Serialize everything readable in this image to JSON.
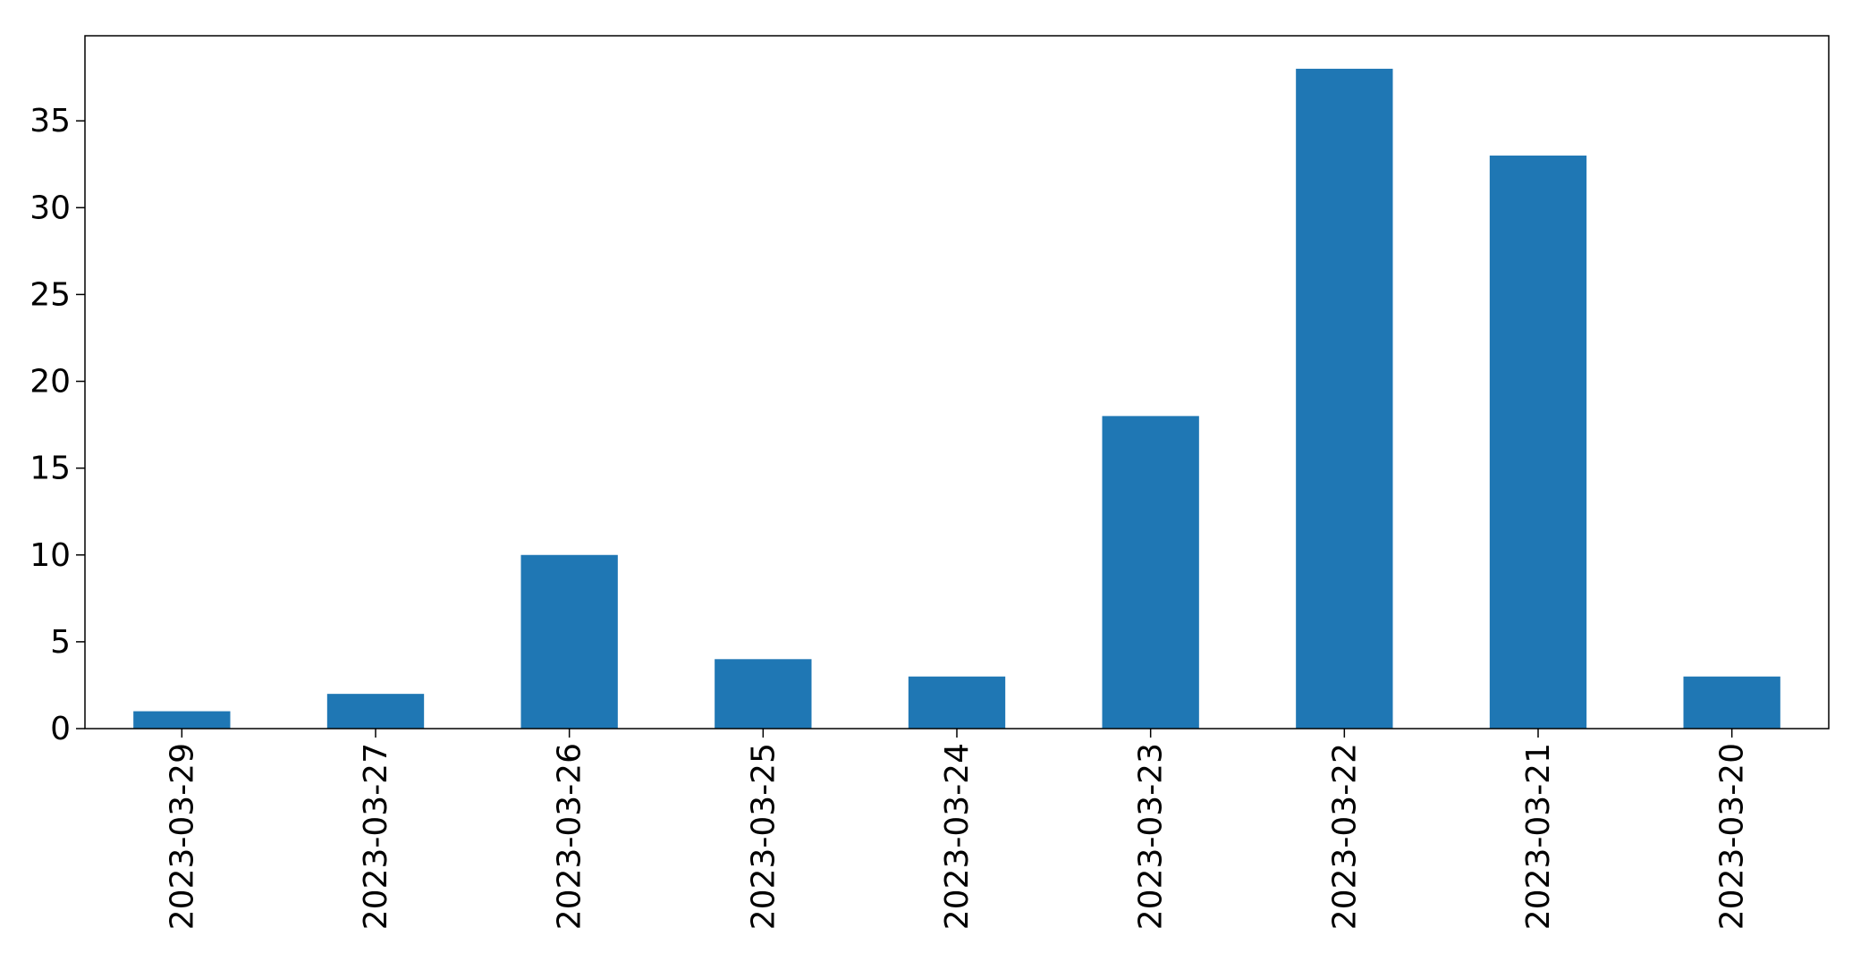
{
  "chart_data": {
    "type": "bar",
    "categories": [
      "2023-03-29",
      "2023-03-27",
      "2023-03-26",
      "2023-03-25",
      "2023-03-24",
      "2023-03-23",
      "2023-03-22",
      "2023-03-21",
      "2023-03-20"
    ],
    "values": [
      1,
      2,
      10,
      4,
      3,
      18,
      38,
      33,
      3
    ],
    "title": "",
    "xlabel": "",
    "ylabel": "",
    "ylim": [
      0,
      39.9
    ],
    "yticks": [
      0,
      5,
      10,
      15,
      20,
      25,
      30,
      35
    ],
    "grid": false,
    "legend": "none",
    "bar_color": "#1f77b4"
  }
}
